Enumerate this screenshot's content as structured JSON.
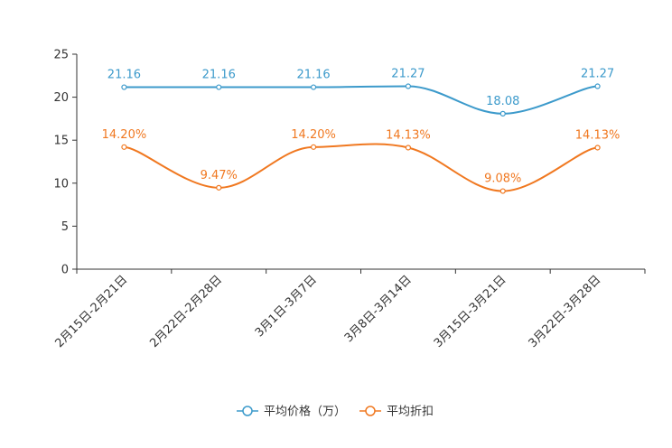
{
  "chart_data": {
    "type": "line",
    "title": "",
    "xlabel": "",
    "ylabel": "",
    "ylim": [
      0,
      25
    ],
    "yticks": [
      0,
      5,
      10,
      15,
      20,
      25
    ],
    "grid": false,
    "legend_position": "bottom",
    "categories": [
      "2月15日-2月21日",
      "2月22日-2月28日",
      "3月1日-3月7日",
      "3月8日-3月14日",
      "3月15日-3月21日",
      "3月22日-3月28日"
    ],
    "series": [
      {
        "name": "平均价格（万）",
        "color": "#3c9acb",
        "values": [
          21.16,
          21.16,
          21.16,
          21.27,
          18.08,
          21.27
        ],
        "labels": [
          "21.16",
          "21.16",
          "21.16",
          "21.27",
          "18.08",
          "21.27"
        ]
      },
      {
        "name": "平均折扣",
        "color": "#f07820",
        "values": [
          14.2,
          9.47,
          14.2,
          14.13,
          9.08,
          14.13
        ],
        "labels": [
          "14.20%",
          "9.47%",
          "14.20%",
          "14.13%",
          "9.08%",
          "14.13%"
        ]
      }
    ]
  }
}
